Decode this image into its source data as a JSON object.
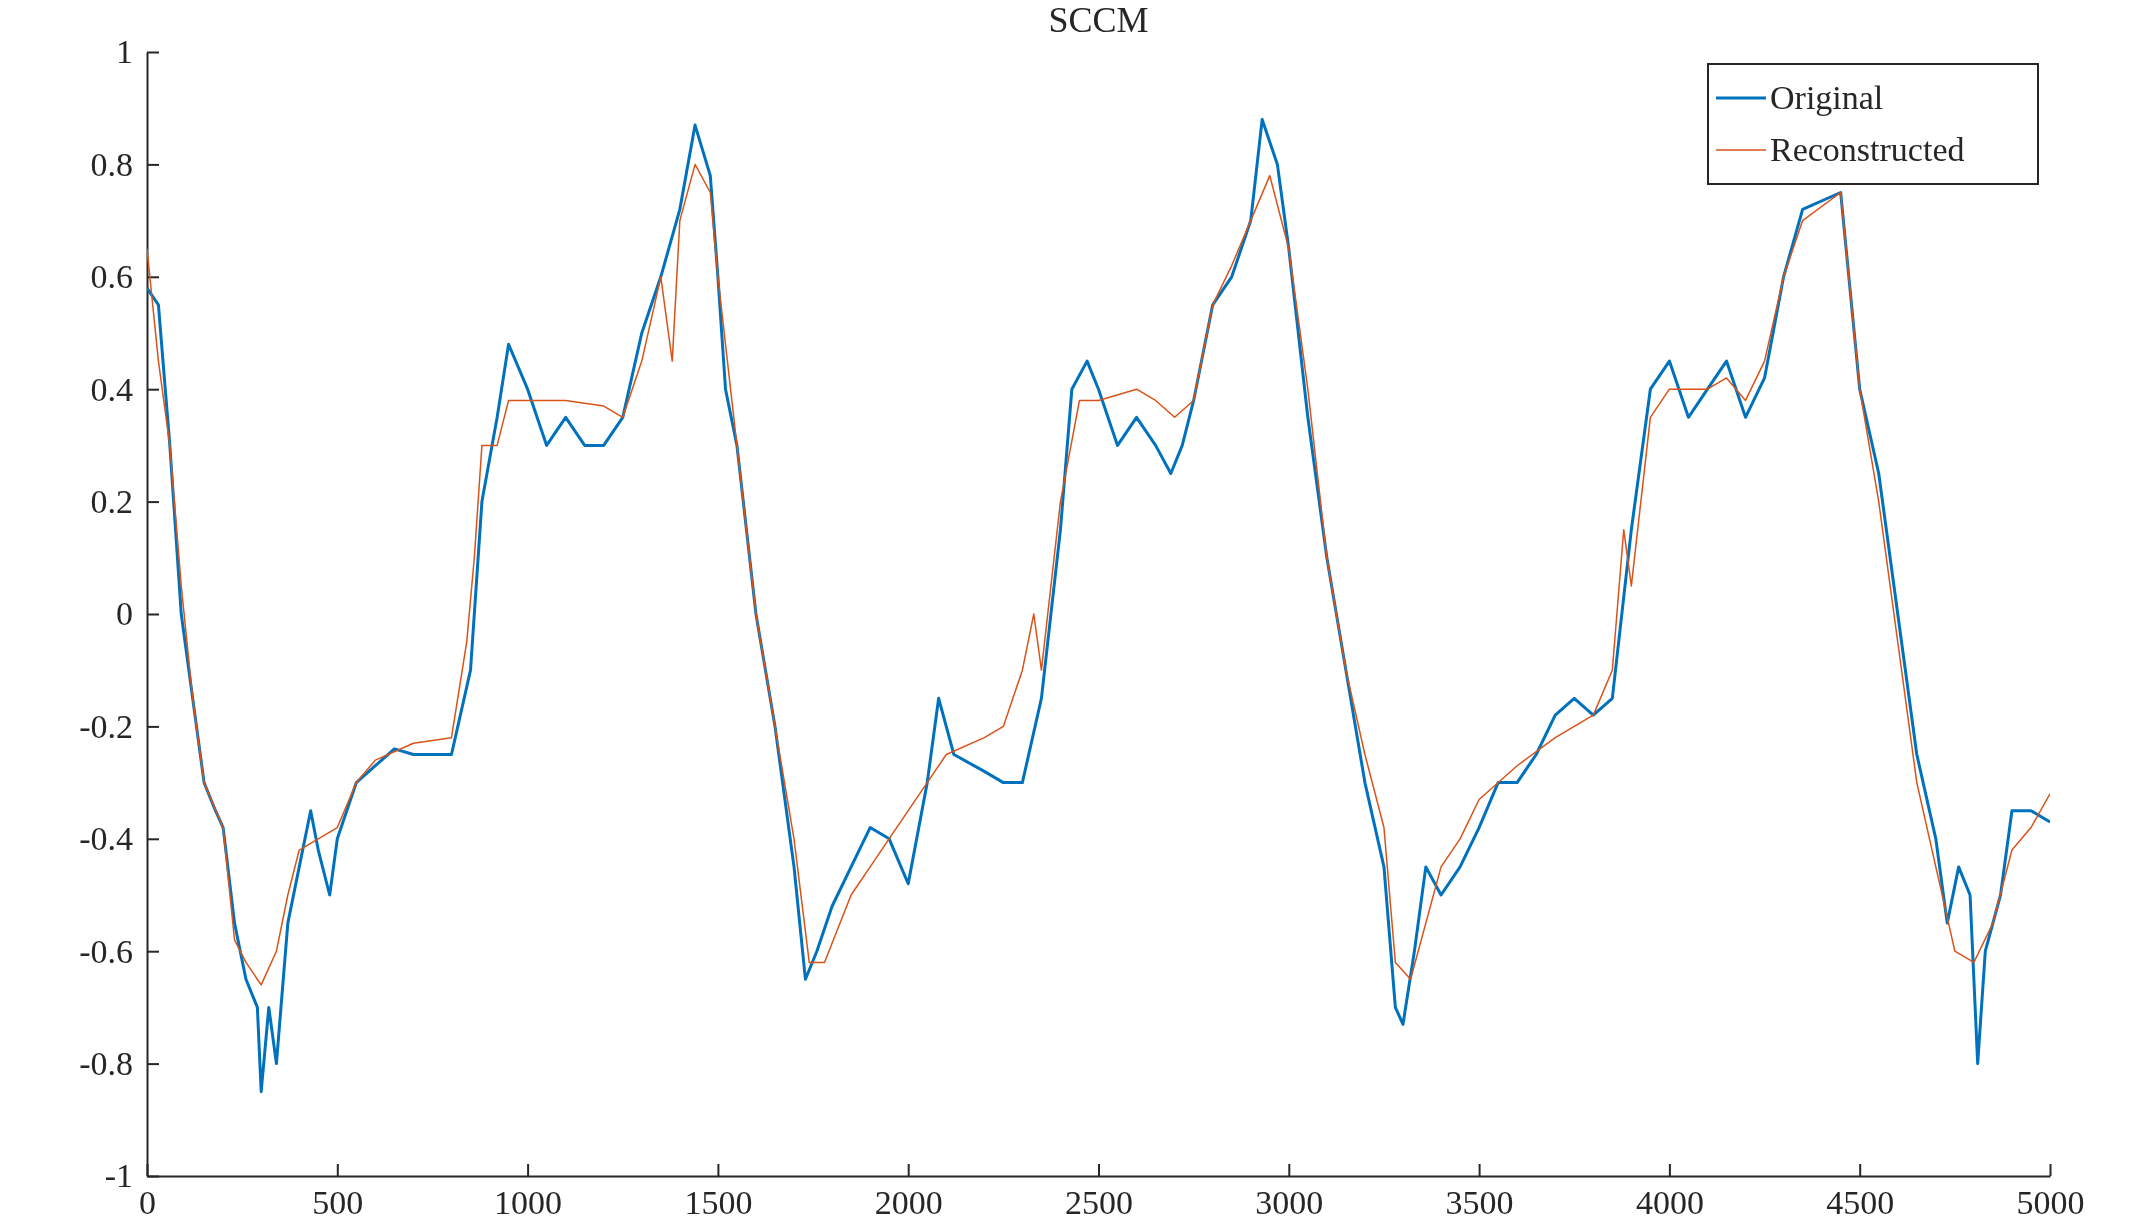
{
  "chart_data": {
    "type": "line",
    "title": "SCCM",
    "legend": "top right",
    "grid": false,
    "xlim": [
      0,
      5000
    ],
    "xticks": [
      0,
      500,
      1000,
      1500,
      2000,
      2500,
      3000,
      3500,
      4000,
      4500,
      5000
    ],
    "ylim": [
      -1,
      1
    ],
    "yticks": [
      -1,
      -0.8,
      -0.6,
      -0.4,
      -0.2,
      0,
      0.2,
      0.4,
      0.6,
      0.8,
      1
    ],
    "series": [
      {
        "name": "Original",
        "color": "#0072bd",
        "x": [
          0,
          30,
          60,
          90,
          120,
          150,
          180,
          200,
          230,
          260,
          290,
          300,
          320,
          340,
          370,
          400,
          430,
          450,
          480,
          500,
          550,
          600,
          650,
          700,
          750,
          800,
          850,
          880,
          920,
          950,
          1000,
          1050,
          1100,
          1150,
          1200,
          1250,
          1300,
          1350,
          1400,
          1440,
          1480,
          1500,
          1520,
          1550,
          1600,
          1650,
          1700,
          1730,
          1760,
          1800,
          1850,
          1900,
          1950,
          2000,
          2050,
          2080,
          2120,
          2200,
          2250,
          2300,
          2350,
          2400,
          2430,
          2470,
          2500,
          2550,
          2600,
          2650,
          2690,
          2720,
          2750,
          2800,
          2850,
          2900,
          2930,
          2970,
          3000,
          3050,
          3100,
          3150,
          3200,
          3250,
          3280,
          3300,
          3330,
          3360,
          3400,
          3450,
          3500,
          3550,
          3600,
          3650,
          3700,
          3750,
          3800,
          3850,
          3900,
          3950,
          4000,
          4050,
          4100,
          4150,
          4200,
          4250,
          4300,
          4350,
          4400,
          4450,
          4500,
          4550,
          4600,
          4650,
          4700,
          4730,
          4760,
          4790,
          4810,
          4830,
          4870,
          4900,
          4950,
          5000
        ],
        "values": [
          0.58,
          0.55,
          0.3,
          0.0,
          -0.15,
          -0.3,
          -0.35,
          -0.38,
          -0.55,
          -0.65,
          -0.7,
          -0.85,
          -0.7,
          -0.8,
          -0.55,
          -0.45,
          -0.35,
          -0.42,
          -0.5,
          -0.4,
          -0.3,
          -0.27,
          -0.24,
          -0.25,
          -0.25,
          -0.25,
          -0.1,
          0.2,
          0.35,
          0.48,
          0.4,
          0.3,
          0.35,
          0.3,
          0.3,
          0.35,
          0.5,
          0.6,
          0.72,
          0.87,
          0.78,
          0.6,
          0.4,
          0.3,
          0.0,
          -0.2,
          -0.45,
          -0.65,
          -0.6,
          -0.52,
          -0.45,
          -0.38,
          -0.4,
          -0.48,
          -0.3,
          -0.15,
          -0.25,
          -0.28,
          -0.3,
          -0.3,
          -0.15,
          0.15,
          0.4,
          0.45,
          0.4,
          0.3,
          0.35,
          0.3,
          0.25,
          0.3,
          0.38,
          0.55,
          0.6,
          0.7,
          0.88,
          0.8,
          0.65,
          0.35,
          0.1,
          -0.1,
          -0.3,
          -0.45,
          -0.7,
          -0.73,
          -0.6,
          -0.45,
          -0.5,
          -0.45,
          -0.38,
          -0.3,
          -0.3,
          -0.25,
          -0.18,
          -0.15,
          -0.18,
          -0.15,
          0.15,
          0.4,
          0.45,
          0.35,
          0.4,
          0.45,
          0.35,
          0.42,
          0.6,
          0.72,
          null,
          0.75,
          0.4,
          0.25,
          0.0,
          -0.25,
          -0.4,
          -0.55,
          -0.45,
          -0.5,
          -0.8,
          -0.6,
          -0.5,
          -0.35,
          -0.35,
          -0.37
        ]
      },
      {
        "name": "Reconstructed",
        "color": "#d95319",
        "x": [
          0,
          30,
          60,
          90,
          120,
          150,
          200,
          230,
          260,
          300,
          340,
          370,
          400,
          450,
          500,
          550,
          600,
          700,
          800,
          840,
          860,
          880,
          920,
          950,
          1000,
          1100,
          1200,
          1250,
          1300,
          1350,
          1380,
          1400,
          1440,
          1480,
          1500,
          1550,
          1600,
          1650,
          1700,
          1740,
          1780,
          1850,
          1900,
          2000,
          2050,
          2100,
          2200,
          2250,
          2300,
          2330,
          2350,
          2400,
          2450,
          2500,
          2600,
          2650,
          2700,
          2750,
          2800,
          2850,
          2900,
          2950,
          3000,
          3050,
          3100,
          3150,
          3200,
          3250,
          3280,
          3320,
          3360,
          3400,
          3450,
          3500,
          3600,
          3700,
          3800,
          3850,
          3880,
          3900,
          3950,
          4000,
          4100,
          4150,
          4200,
          4250,
          4300,
          4350,
          4400,
          4450,
          4500,
          4550,
          4600,
          4650,
          4700,
          4750,
          4800,
          4850,
          4900,
          4950,
          5000
        ],
        "values": [
          0.65,
          0.45,
          0.3,
          0.05,
          -0.15,
          -0.3,
          -0.38,
          -0.58,
          -0.62,
          -0.66,
          -0.6,
          -0.5,
          -0.42,
          -0.4,
          -0.38,
          -0.3,
          -0.26,
          -0.23,
          -0.22,
          -0.05,
          0.1,
          0.3,
          0.3,
          0.38,
          0.38,
          0.38,
          0.37,
          0.35,
          0.45,
          0.6,
          0.45,
          0.7,
          0.8,
          0.75,
          0.6,
          0.3,
          0.0,
          -0.2,
          -0.4,
          -0.62,
          -0.62,
          -0.5,
          -0.45,
          -0.35,
          -0.3,
          -0.25,
          -0.22,
          -0.2,
          -0.1,
          0.0,
          -0.1,
          0.2,
          0.38,
          0.38,
          0.4,
          0.38,
          0.35,
          0.38,
          0.55,
          0.62,
          0.7,
          0.78,
          0.65,
          0.4,
          0.1,
          -0.1,
          -0.25,
          -0.38,
          -0.62,
          -0.65,
          -0.55,
          -0.45,
          -0.4,
          -0.33,
          -0.27,
          -0.22,
          -0.18,
          -0.1,
          0.15,
          0.05,
          0.35,
          0.4,
          0.4,
          0.42,
          0.38,
          0.45,
          0.6,
          0.7,
          null,
          0.75,
          0.4,
          0.2,
          -0.05,
          -0.3,
          -0.45,
          -0.6,
          -0.62,
          -0.55,
          -0.42,
          -0.38,
          -0.32
        ]
      }
    ]
  }
}
